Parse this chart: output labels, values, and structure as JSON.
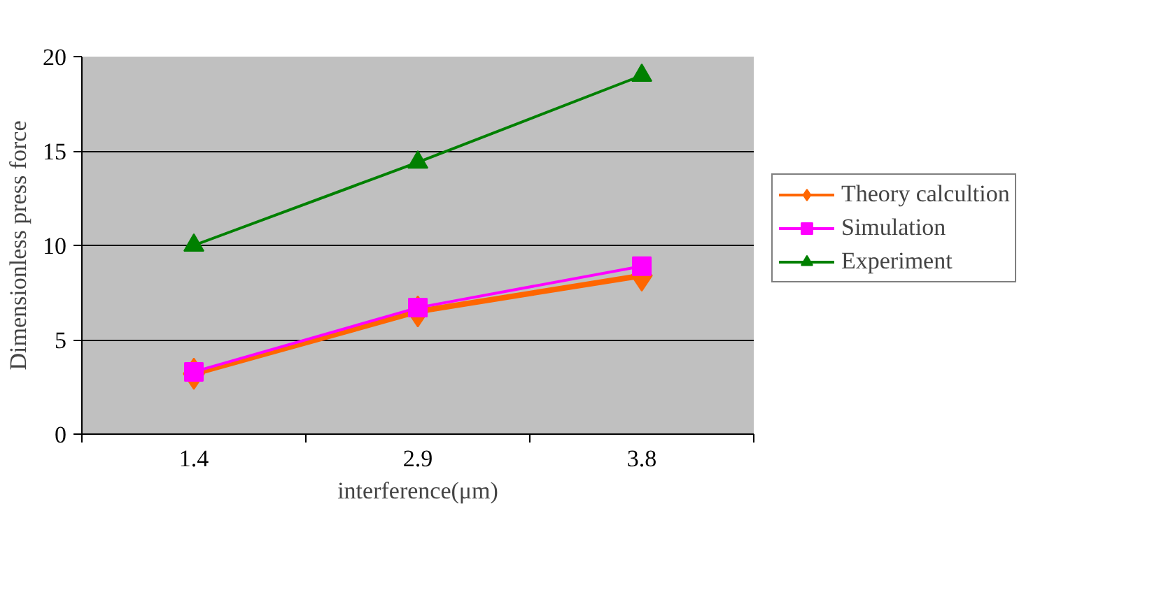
{
  "chart_data": {
    "type": "line",
    "xlabel": "interference(μm)",
    "ylabel": "Dimensionless press force",
    "categories": [
      "1.4",
      "2.9",
      "3.8"
    ],
    "series": [
      {
        "name": "Theory calcultion",
        "color": "#ff6600",
        "marker": "diamond",
        "values": [
          3.2,
          6.5,
          8.4
        ]
      },
      {
        "name": "Simulation",
        "color": "#ff00ff",
        "marker": "square",
        "values": [
          3.3,
          6.7,
          8.9
        ]
      },
      {
        "name": "Experiment",
        "color": "#008000",
        "marker": "triangle",
        "values": [
          10.0,
          14.4,
          19.0
        ]
      }
    ],
    "ylim": [
      0,
      20
    ],
    "yticks": [
      0,
      5,
      10,
      15,
      20
    ],
    "grid": "y",
    "legend": "right",
    "line_style": "solid"
  }
}
